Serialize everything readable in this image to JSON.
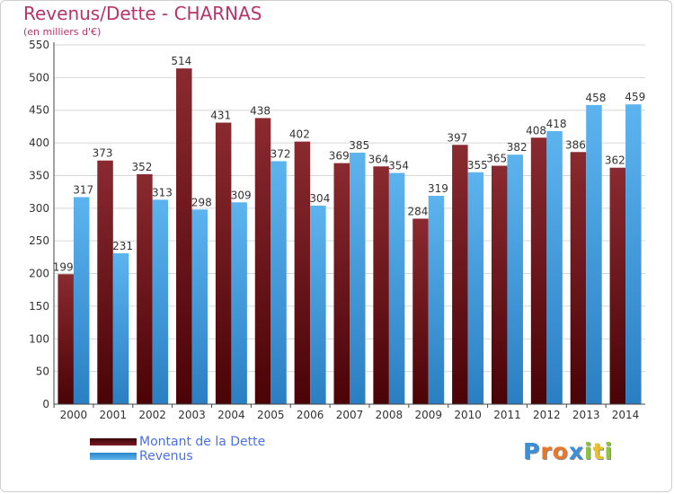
{
  "header": {
    "title": "Revenus/Dette - CHARNAS",
    "subtitle": "(en milliers d'€)"
  },
  "legend": {
    "items": [
      {
        "label": "Montant de la Dette",
        "color": "#6b0f14"
      },
      {
        "label": "Revenus",
        "color": "#3d9de0"
      }
    ]
  },
  "logo": {
    "letters": [
      {
        "char": "P",
        "color": "#3a8fd8"
      },
      {
        "char": "r",
        "color": "#e8782a"
      },
      {
        "char": "o",
        "color": "#e8782a"
      },
      {
        "char": "x",
        "color": "#3a8fd8"
      },
      {
        "char": "i",
        "color": "#8cc43e"
      },
      {
        "char": "t",
        "color": "#e8c22a"
      },
      {
        "char": "i",
        "color": "#8cc43e"
      }
    ]
  },
  "chart_data": {
    "type": "bar",
    "title": "Revenus/Dette - CHARNAS",
    "subtitle": "(en milliers d'€)",
    "categories": [
      "2000",
      "2001",
      "2002",
      "2003",
      "2004",
      "2005",
      "2006",
      "2007",
      "2008",
      "2009",
      "2010",
      "2011",
      "2012",
      "2013",
      "2014"
    ],
    "series": [
      {
        "name": "Montant de la Dette",
        "values": [
          199,
          373,
          352,
          514,
          431,
          438,
          402,
          369,
          364,
          284,
          397,
          365,
          408,
          386,
          362
        ],
        "color": "#6b0f14"
      },
      {
        "name": "Revenus",
        "values": [
          317,
          231,
          313,
          298,
          309,
          372,
          304,
          385,
          354,
          319,
          355,
          382,
          418,
          458,
          459
        ],
        "color": "#3d9de0"
      }
    ],
    "yticks": [
      0,
      50,
      100,
      150,
      200,
      250,
      300,
      350,
      400,
      450,
      500,
      550
    ],
    "ylim": [
      0,
      550
    ],
    "grid": true,
    "legend_position": "bottom-left"
  }
}
